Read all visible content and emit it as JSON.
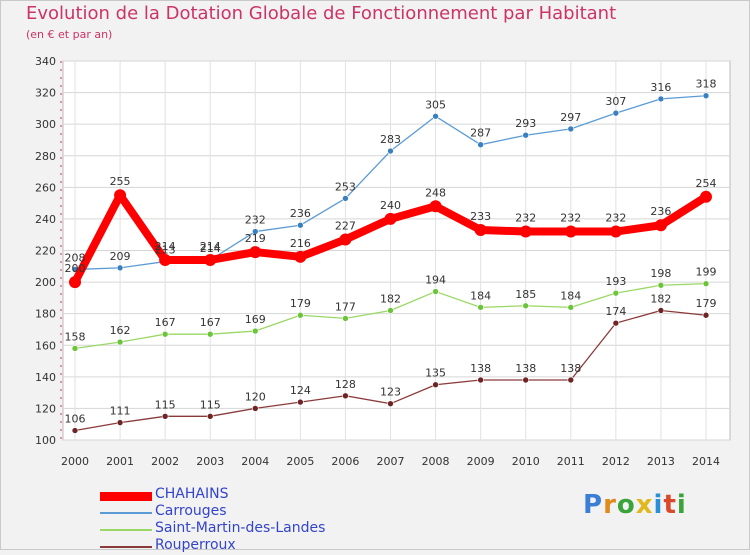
{
  "header": {
    "title": "Evolution de la Dotation Globale de Fonctionnement par Habitant",
    "subtitle": "(en € et par an)"
  },
  "logo": {
    "text": "Proxiti",
    "colors": [
      "#3a7fd5",
      "#e08a1e",
      "#3aa43a",
      "#e0b81e",
      "#2a8fd5",
      "#d84a2a",
      "#3aa43a"
    ]
  },
  "chart_data": {
    "type": "line",
    "x": [
      2000,
      2001,
      2002,
      2003,
      2004,
      2005,
      2006,
      2007,
      2008,
      2009,
      2010,
      2011,
      2012,
      2013,
      2014
    ],
    "ylim": [
      100,
      340
    ],
    "yticks": [
      100,
      120,
      140,
      160,
      180,
      200,
      220,
      240,
      260,
      280,
      300,
      320,
      340
    ],
    "grid": true,
    "legend": "bottom-left",
    "series": [
      {
        "name": "Carrouges",
        "color": "#5b9bd5",
        "marker": "#3a7fc0",
        "values": [
          208,
          209,
          213,
          214,
          232,
          236,
          253,
          283,
          305,
          287,
          293,
          297,
          307,
          316,
          318
        ]
      },
      {
        "name": "Saint-Martin-des-Landes",
        "color": "#9ad865",
        "marker": "#6cc43a",
        "values": [
          158,
          162,
          167,
          167,
          169,
          179,
          177,
          182,
          194,
          184,
          185,
          184,
          193,
          198,
          199
        ]
      },
      {
        "name": "Rouperroux",
        "color": "#8b3a3a",
        "marker": "#6e2424",
        "values": [
          106,
          111,
          115,
          115,
          120,
          124,
          128,
          123,
          135,
          138,
          138,
          138,
          174,
          182,
          179
        ]
      },
      {
        "name": "CHAHAINS",
        "color": "#ff0000",
        "marker": "#ff0000",
        "values": [
          200,
          255,
          214,
          214,
          219,
          216,
          227,
          240,
          248,
          233,
          232,
          232,
          232,
          236,
          254
        ]
      }
    ],
    "label_text": {
      "Carrouges": [
        "208",
        "209",
        "213",
        "214",
        "232",
        "236",
        "253",
        "283",
        "305",
        "287",
        "293",
        "297",
        "307",
        "316",
        "318"
      ],
      "Saint-Martin-des-Landes": [
        "158",
        "162",
        "167",
        "167",
        "169",
        "179",
        "177",
        "182",
        "194",
        "184",
        "185",
        "184",
        "193",
        "198",
        "199"
      ],
      "Rouperroux": [
        "106",
        "111",
        "115",
        "115",
        "120",
        "124",
        "128",
        "123",
        "135",
        "138",
        "138",
        "138",
        "174",
        "182",
        "179"
      ],
      "CHAHAINS": [
        "200",
        "255",
        "214",
        "214",
        "219",
        "216",
        "227",
        "240",
        "248",
        "233",
        "232",
        "232",
        "232",
        "236",
        "254"
      ]
    }
  },
  "legend": {
    "items": [
      {
        "label": "CHAHAINS",
        "color": "#ff0000",
        "text_color": "#3344cc"
      },
      {
        "label": "Carrouges",
        "color": "#5b9bd5",
        "text_color": "#3344cc"
      },
      {
        "label": "Saint-Martin-des-Landes",
        "color": "#9ad865",
        "text_color": "#3344cc"
      },
      {
        "label": "Rouperroux",
        "color": "#8b3a3a",
        "text_color": "#3344cc"
      }
    ]
  }
}
